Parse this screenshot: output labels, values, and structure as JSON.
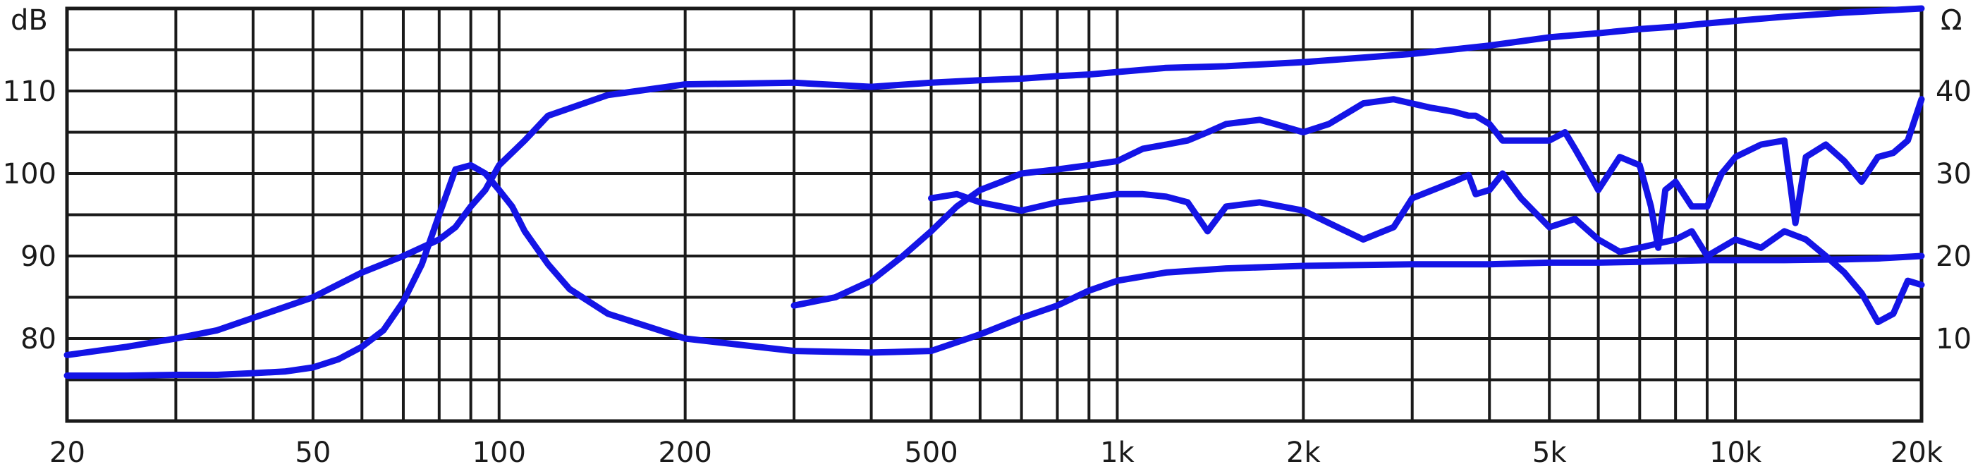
{
  "chart_data": {
    "type": "line",
    "title": "",
    "xscale": "log",
    "xlim": [
      20,
      20000
    ],
    "x_ticks": [
      {
        "value": 20,
        "label": "20"
      },
      {
        "value": 50,
        "label": "50"
      },
      {
        "value": 100,
        "label": "100"
      },
      {
        "value": 200,
        "label": "200"
      },
      {
        "value": 500,
        "label": "500"
      },
      {
        "value": 1000,
        "label": "1k"
      },
      {
        "value": 2000,
        "label": "2k"
      },
      {
        "value": 5000,
        "label": "5k"
      },
      {
        "value": 10000,
        "label": "10k"
      },
      {
        "value": 20000,
        "label": "20k"
      }
    ],
    "x_gridlines": [
      20,
      30,
      40,
      50,
      60,
      70,
      80,
      90,
      100,
      200,
      300,
      400,
      500,
      600,
      700,
      800,
      900,
      1000,
      2000,
      3000,
      4000,
      5000,
      6000,
      7000,
      8000,
      9000,
      10000,
      20000
    ],
    "y_left": {
      "label": "dB",
      "lim": [
        70,
        120
      ],
      "ticks": [
        {
          "value": 80,
          "label": "80"
        },
        {
          "value": 90,
          "label": "90"
        },
        {
          "value": 100,
          "label": "100"
        },
        {
          "value": 110,
          "label": "110"
        }
      ]
    },
    "y_right": {
      "label": "Ω",
      "lim": [
        0,
        50
      ],
      "ticks": [
        {
          "value": 10,
          "label": "10"
        },
        {
          "value": 20,
          "label": "20"
        },
        {
          "value": 30,
          "label": "30"
        },
        {
          "value": 40,
          "label": "40"
        }
      ]
    },
    "y_gridlines": [
      75,
      80,
      85,
      90,
      95,
      100,
      105,
      110,
      115,
      120
    ],
    "grid": true,
    "line_color": "#1414e6",
    "grid_color": "#1a1a1a",
    "series": [
      {
        "axis": "right",
        "x": [
          20,
          25,
          30,
          35,
          40,
          50,
          60,
          70,
          80,
          85,
          90,
          95,
          100,
          110,
          120,
          150,
          200,
          300,
          400,
          500,
          600,
          700,
          800,
          900,
          1000,
          1200,
          1500,
          2000,
          3000,
          4000,
          5000,
          6000,
          7000,
          8000,
          9000,
          10000,
          12000,
          15000,
          20000
        ],
        "values": [
          8,
          9,
          10,
          11,
          12.5,
          15,
          18,
          20,
          22,
          23.5,
          26,
          28,
          31,
          34,
          37,
          39.5,
          40.8,
          41,
          40.5,
          41,
          41.3,
          41.5,
          41.8,
          42,
          42.3,
          42.8,
          43,
          43.5,
          44.5,
          45.5,
          46.5,
          47,
          47.5,
          47.8,
          48.2,
          48.5,
          49,
          49.5,
          50
        ]
      },
      {
        "axis": "right",
        "x": [
          20,
          25,
          30,
          35,
          40,
          45,
          50,
          55,
          60,
          65,
          70,
          75,
          80,
          85,
          90,
          95,
          100,
          105,
          110,
          120,
          130,
          150,
          200,
          300,
          400,
          500,
          600,
          700,
          800,
          900,
          1000,
          1200,
          1500,
          2000,
          3000,
          4000,
          5000,
          6000,
          7000,
          8000,
          9000,
          10000,
          12000,
          15000,
          17000,
          20000
        ],
        "values": [
          5.5,
          5.5,
          5.6,
          5.6,
          5.8,
          6,
          6.5,
          7.5,
          9,
          11,
          14.5,
          19,
          25,
          30.5,
          31,
          30,
          28,
          26,
          23,
          19,
          16,
          13,
          10,
          8.5,
          8.3,
          8.5,
          10.5,
          12.5,
          14,
          15.8,
          17,
          18,
          18.5,
          18.8,
          19,
          19,
          19.2,
          19.2,
          19.3,
          19.4,
          19.5,
          19.5,
          19.5,
          19.6,
          19.7,
          20
        ]
      },
      {
        "axis": "right",
        "x": [
          300,
          350,
          400,
          450,
          500,
          550,
          600,
          650,
          700,
          800,
          900,
          1000,
          1100,
          1200,
          1300,
          1400,
          1500,
          1700,
          1800,
          2000,
          2200,
          2500,
          2800,
          3200,
          3500,
          3700,
          3800,
          4000,
          4200,
          4500,
          5000,
          5300,
          5500,
          5800,
          6000,
          6500,
          7000,
          7300,
          7500,
          7700,
          8000,
          8500,
          9000,
          9500,
          10000,
          11000,
          12000,
          12500,
          13000,
          14000,
          15000,
          16000,
          17000,
          18000,
          19000,
          20000
        ],
        "values": [
          14,
          15,
          17,
          20,
          23,
          26,
          28,
          29,
          30,
          30.5,
          31,
          31.5,
          33,
          33.5,
          34,
          35,
          36,
          36.5,
          36,
          35,
          36,
          38.5,
          39,
          38,
          37.5,
          37,
          37,
          36,
          34,
          34,
          34,
          35,
          33,
          30,
          28,
          32,
          31,
          26,
          21,
          28,
          29,
          26,
          26,
          30,
          32,
          33.5,
          34,
          24,
          32,
          33.5,
          31.5,
          29,
          32,
          32.5,
          34,
          39
        ]
      },
      {
        "axis": "right",
        "x": [
          500,
          550,
          600,
          650,
          700,
          800,
          900,
          1000,
          1100,
          1200,
          1300,
          1400,
          1500,
          1700,
          2000,
          2200,
          2500,
          2800,
          3000,
          3500,
          3700,
          3800,
          4000,
          4200,
          4500,
          5000,
          5500,
          6000,
          6500,
          7000,
          8000,
          8500,
          9000,
          10000,
          11000,
          12000,
          13000,
          14000,
          15000,
          16000,
          17000,
          18000,
          19000,
          20000
        ],
        "values": [
          27,
          27.5,
          26.5,
          26,
          25.5,
          26.5,
          27,
          27.5,
          27.5,
          27.2,
          26.5,
          23,
          26,
          26.5,
          25.5,
          24,
          22,
          23.5,
          27,
          29,
          29.8,
          27.5,
          28,
          30,
          27,
          23.5,
          24.5,
          22,
          20.5,
          21,
          22,
          23,
          20,
          22,
          21,
          23,
          22,
          20,
          18,
          15.5,
          12,
          13,
          17,
          16.5
        ]
      }
    ]
  }
}
